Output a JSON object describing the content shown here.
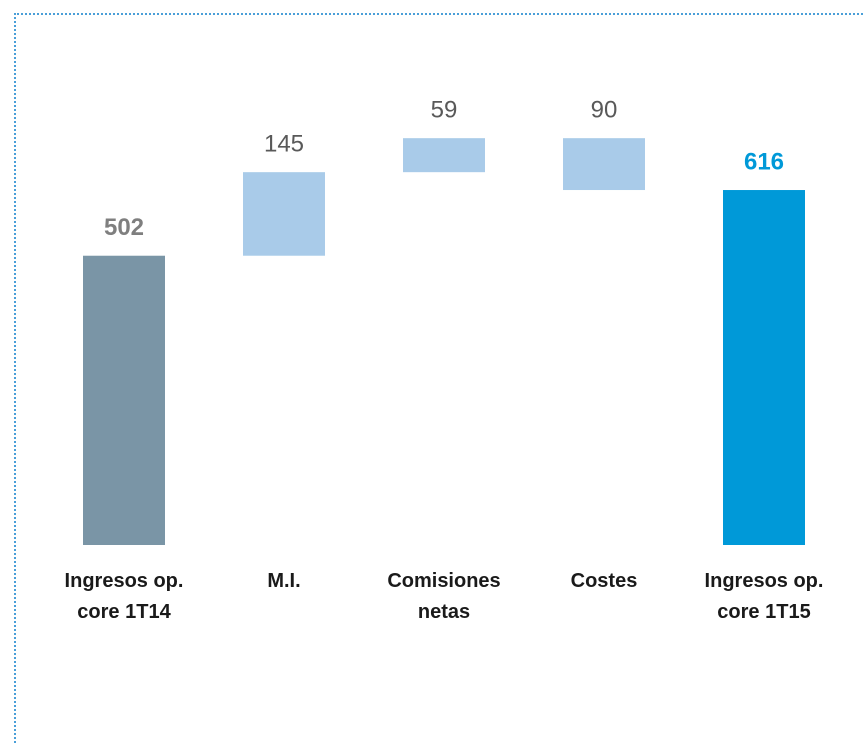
{
  "chart_data": {
    "type": "waterfall",
    "categories": [
      "Ingresos op.\ncore 1T14",
      "M.I.",
      "Comisiones\nnetas",
      "Costes",
      "Ingresos op.\ncore 1T15"
    ],
    "values": [
      502,
      145,
      59,
      -90,
      616
    ],
    "value_labels": [
      "502",
      "145",
      "59",
      "90",
      "616"
    ],
    "measures": [
      "absolute",
      "relative",
      "relative",
      "relative",
      "total"
    ],
    "colors": [
      "#7a95a6",
      "#a9cbe9",
      "#a9cbe9",
      "#a9cbe9",
      "#0099d8"
    ],
    "ylim": [
      0,
      800
    ]
  }
}
